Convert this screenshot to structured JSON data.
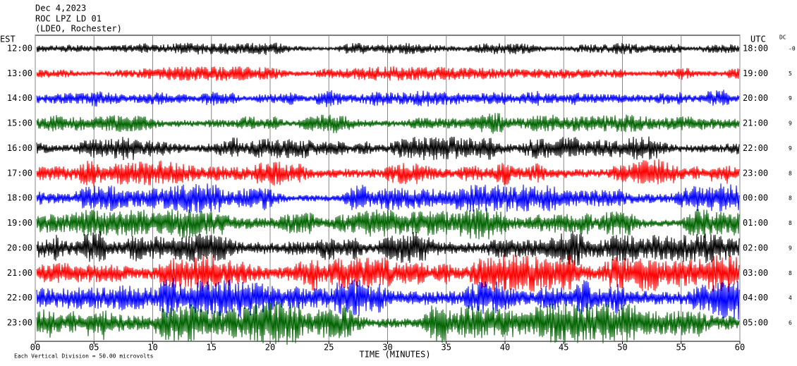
{
  "chart_data": {
    "type": "helicorder",
    "title_lines": [
      "Dec 4,2023",
      "ROC LPZ LD 01",
      "(LDEO, Rochester)"
    ],
    "left_axis_label": "EST",
    "right_axis_label": "UTC",
    "dc_label": "DC",
    "xlabel": "TIME (MINUTES)",
    "footnote": "Each Vertical Division =   50.00 microvolts",
    "xlim": [
      0,
      60
    ],
    "xticks": [
      {
        "value": 0,
        "label": "00"
      },
      {
        "value": 5,
        "label": "05"
      },
      10,
      15,
      20,
      25,
      30,
      35,
      40,
      45,
      50,
      55,
      60
    ],
    "grid": true,
    "rows": [
      {
        "left": "12:00",
        "right": "18:00",
        "dc": "-0",
        "color": "#000000"
      },
      {
        "left": "13:00",
        "right": "19:00",
        "dc": "5",
        "color": "#ff0000"
      },
      {
        "left": "14:00",
        "right": "20:00",
        "dc": "9",
        "color": "#0000ff"
      },
      {
        "left": "15:00",
        "right": "21:00",
        "dc": "9",
        "color": "#006400"
      },
      {
        "left": "16:00",
        "right": "22:00",
        "dc": "9",
        "color": "#000000"
      },
      {
        "left": "17:00",
        "right": "23:00",
        "dc": "8",
        "color": "#ff0000"
      },
      {
        "left": "18:00",
        "right": "00:00",
        "dc": "8",
        "color": "#0000ff"
      },
      {
        "left": "19:00",
        "right": "01:00",
        "dc": "8",
        "color": "#006400"
      },
      {
        "left": "20:00",
        "right": "02:00",
        "dc": "9",
        "color": "#000000"
      },
      {
        "left": "21:00",
        "right": "03:00",
        "dc": "8",
        "color": "#ff0000"
      },
      {
        "left": "22:00",
        "right": "04:00",
        "dc": "4",
        "color": "#0000ff"
      },
      {
        "left": "23:00",
        "right": "05:00",
        "dc": "6",
        "color": "#006400"
      }
    ]
  }
}
